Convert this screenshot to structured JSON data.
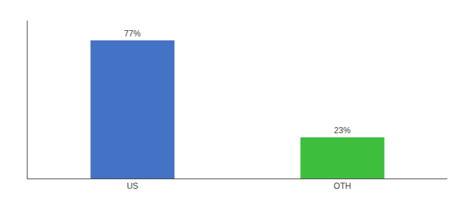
{
  "chart_data": {
    "type": "bar",
    "categories": [
      "US",
      "OTH"
    ],
    "values": [
      77,
      23
    ],
    "value_labels": [
      "77%",
      "23%"
    ],
    "colors": [
      "#4472c4",
      "#3dbf3d"
    ],
    "ylim": [
      0,
      88
    ],
    "data_labels": true,
    "tick_labels": "x",
    "grid": false
  }
}
